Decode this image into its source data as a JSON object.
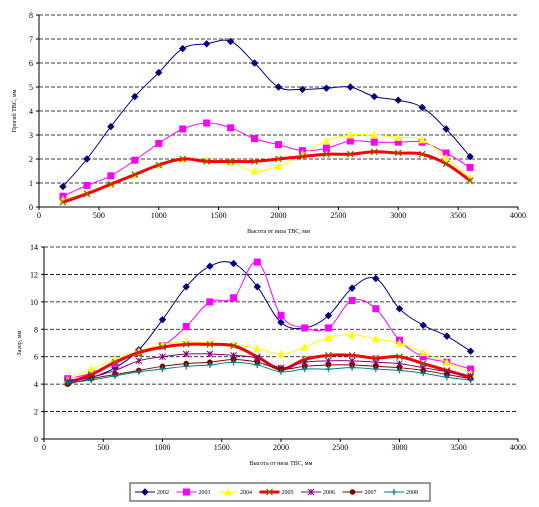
{
  "chart_data": [
    {
      "type": "line",
      "xlabel": "Высота от низа ТВС, мм",
      "ylabel": "Прогиб ТВС, мм",
      "xlim": [
        0,
        4000
      ],
      "ylim": [
        0,
        8
      ],
      "xticks": [
        0,
        500,
        1000,
        1500,
        2000,
        2500,
        3000,
        3500,
        4000
      ],
      "yticks": [
        0,
        1,
        2,
        3,
        4,
        5,
        6,
        7,
        8
      ],
      "grid": "horizontal dashed",
      "series": [
        {
          "name": "2002",
          "color": "#000080",
          "marker": "diamond",
          "width": 1,
          "x": [
            200,
            400,
            600,
            800,
            1000,
            1200,
            1400,
            1600,
            1800,
            2000,
            2200,
            2400,
            2600,
            2800,
            3000,
            3200,
            3400,
            3600
          ],
          "y": [
            0.85,
            2.0,
            3.35,
            4.6,
            5.6,
            6.6,
            6.8,
            6.9,
            6.0,
            5.0,
            4.9,
            4.95,
            5.0,
            4.6,
            4.45,
            4.15,
            3.25,
            2.1
          ]
        },
        {
          "name": "2003",
          "color": "#FF00FF",
          "marker": "square",
          "width": 1,
          "x": [
            200,
            400,
            600,
            800,
            1000,
            1200,
            1400,
            1600,
            1800,
            2000,
            2200,
            2400,
            2600,
            2800,
            3000,
            3200,
            3400,
            3600
          ],
          "y": [
            0.45,
            0.9,
            1.3,
            1.95,
            2.65,
            3.25,
            3.5,
            3.3,
            2.85,
            2.6,
            2.35,
            2.45,
            2.75,
            2.7,
            2.7,
            2.7,
            2.25,
            1.65
          ]
        },
        {
          "name": "2004",
          "color": "#FFFF00",
          "marker": "triangle",
          "width": 1,
          "x": [
            200,
            400,
            600,
            800,
            1000,
            1200,
            1400,
            1600,
            1800,
            2000,
            2200,
            2400,
            2600,
            2800,
            3000,
            3200,
            3400,
            3600
          ],
          "y": [
            0.3,
            0.6,
            0.95,
            1.35,
            1.75,
            2.0,
            1.95,
            1.85,
            1.5,
            1.7,
            2.2,
            2.75,
            3.0,
            3.0,
            2.9,
            2.8,
            2.05,
            1.2
          ]
        },
        {
          "name": "2005",
          "color": "#FF0000",
          "marker": "x",
          "width": 3,
          "x": [
            200,
            400,
            600,
            800,
            1000,
            1200,
            1400,
            1600,
            1800,
            2000,
            2200,
            2400,
            2600,
            2800,
            3000,
            3200,
            3400,
            3600
          ],
          "y": [
            0.2,
            0.55,
            0.95,
            1.35,
            1.75,
            2.0,
            1.9,
            1.9,
            1.9,
            2.0,
            2.1,
            2.2,
            2.2,
            2.3,
            2.25,
            2.2,
            1.8,
            1.1
          ]
        }
      ]
    },
    {
      "type": "line",
      "xlabel": "Высота от низа ТВС, мм",
      "ylabel": "Зазор, мм",
      "xlim": [
        0,
        4000
      ],
      "ylim": [
        0,
        14
      ],
      "xticks": [
        0,
        500,
        1000,
        1500,
        2000,
        2500,
        3000,
        3500,
        4000
      ],
      "yticks": [
        0,
        2,
        4,
        6,
        8,
        10,
        12,
        14
      ],
      "grid": "horizontal dashed",
      "series": [
        {
          "name": "2002",
          "color": "#000080",
          "marker": "diamond",
          "width": 1,
          "x": [
            200,
            400,
            600,
            800,
            1000,
            1200,
            1400,
            1600,
            1800,
            2000,
            2200,
            2400,
            2600,
            2800,
            3000,
            3200,
            3400,
            3600
          ],
          "y": [
            4.3,
            4.5,
            5.2,
            6.5,
            8.7,
            11.1,
            12.6,
            12.8,
            11.1,
            8.5,
            8.1,
            9.0,
            11.0,
            11.7,
            9.5,
            8.3,
            7.5,
            6.4
          ]
        },
        {
          "name": "2003",
          "color": "#FF00FF",
          "marker": "square",
          "width": 1,
          "x": [
            200,
            400,
            600,
            800,
            1000,
            1200,
            1400,
            1600,
            1800,
            2000,
            2200,
            2400,
            2600,
            2800,
            3000,
            3200,
            3400,
            3600
          ],
          "y": [
            4.4,
            4.8,
            5.5,
            6.3,
            6.8,
            8.2,
            10.0,
            10.3,
            12.9,
            9.0,
            8.1,
            8.1,
            10.1,
            9.5,
            7.2,
            6.0,
            5.6,
            5.1
          ]
        },
        {
          "name": "2004",
          "color": "#FFFF00",
          "marker": "triangle",
          "width": 1,
          "x": [
            200,
            400,
            600,
            800,
            1000,
            1200,
            1400,
            1600,
            1800,
            2000,
            2200,
            2400,
            2600,
            2800,
            3000,
            3200,
            3400,
            3600
          ],
          "y": [
            4.3,
            5.1,
            5.8,
            6.4,
            6.9,
            7.1,
            7.0,
            6.9,
            6.6,
            6.2,
            6.7,
            7.4,
            7.6,
            7.3,
            7.0,
            6.3,
            5.6,
            4.8
          ]
        },
        {
          "name": "2005",
          "color": "#FF0000",
          "marker": "x",
          "width": 3,
          "x": [
            200,
            400,
            600,
            800,
            1000,
            1200,
            1400,
            1600,
            1800,
            2000,
            2200,
            2400,
            2600,
            2800,
            3000,
            3200,
            3400,
            3600
          ],
          "y": [
            4.1,
            4.7,
            5.6,
            6.3,
            6.7,
            6.9,
            6.9,
            6.8,
            6.0,
            5.1,
            5.8,
            6.1,
            6.1,
            5.9,
            6.0,
            5.5,
            5.0,
            4.5
          ]
        },
        {
          "name": "2006",
          "color": "#800080",
          "marker": "star",
          "width": 1,
          "x": [
            200,
            400,
            600,
            800,
            1000,
            1200,
            1400,
            1600,
            1800,
            2000,
            2200,
            2400,
            2600,
            2800,
            3000,
            3200,
            3400,
            3600
          ],
          "y": [
            4.2,
            4.5,
            5.0,
            5.7,
            6.0,
            6.2,
            6.2,
            6.1,
            5.9,
            5.2,
            5.6,
            5.7,
            5.7,
            5.6,
            5.5,
            5.2,
            4.9,
            4.6
          ]
        },
        {
          "name": "2007",
          "color": "#800000",
          "marker": "circle",
          "width": 1,
          "x": [
            200,
            400,
            600,
            800,
            1000,
            1200,
            1400,
            1600,
            1800,
            2000,
            2200,
            2400,
            2600,
            2800,
            3000,
            3200,
            3400,
            3600
          ],
          "y": [
            4.0,
            4.4,
            4.7,
            5.0,
            5.3,
            5.5,
            5.6,
            5.8,
            5.6,
            5.1,
            5.3,
            5.4,
            5.4,
            5.3,
            5.2,
            5.0,
            4.7,
            4.4
          ]
        },
        {
          "name": "2008",
          "color": "#008080",
          "marker": "plus",
          "width": 1,
          "x": [
            200,
            400,
            600,
            800,
            1000,
            1200,
            1400,
            1600,
            1800,
            2000,
            2200,
            2400,
            2600,
            2800,
            3000,
            3200,
            3400,
            3600
          ],
          "y": [
            4.1,
            4.3,
            4.6,
            4.9,
            5.1,
            5.3,
            5.4,
            5.6,
            5.4,
            4.9,
            5.1,
            5.1,
            5.2,
            5.1,
            5.0,
            4.8,
            4.5,
            4.3
          ]
        }
      ]
    }
  ]
}
